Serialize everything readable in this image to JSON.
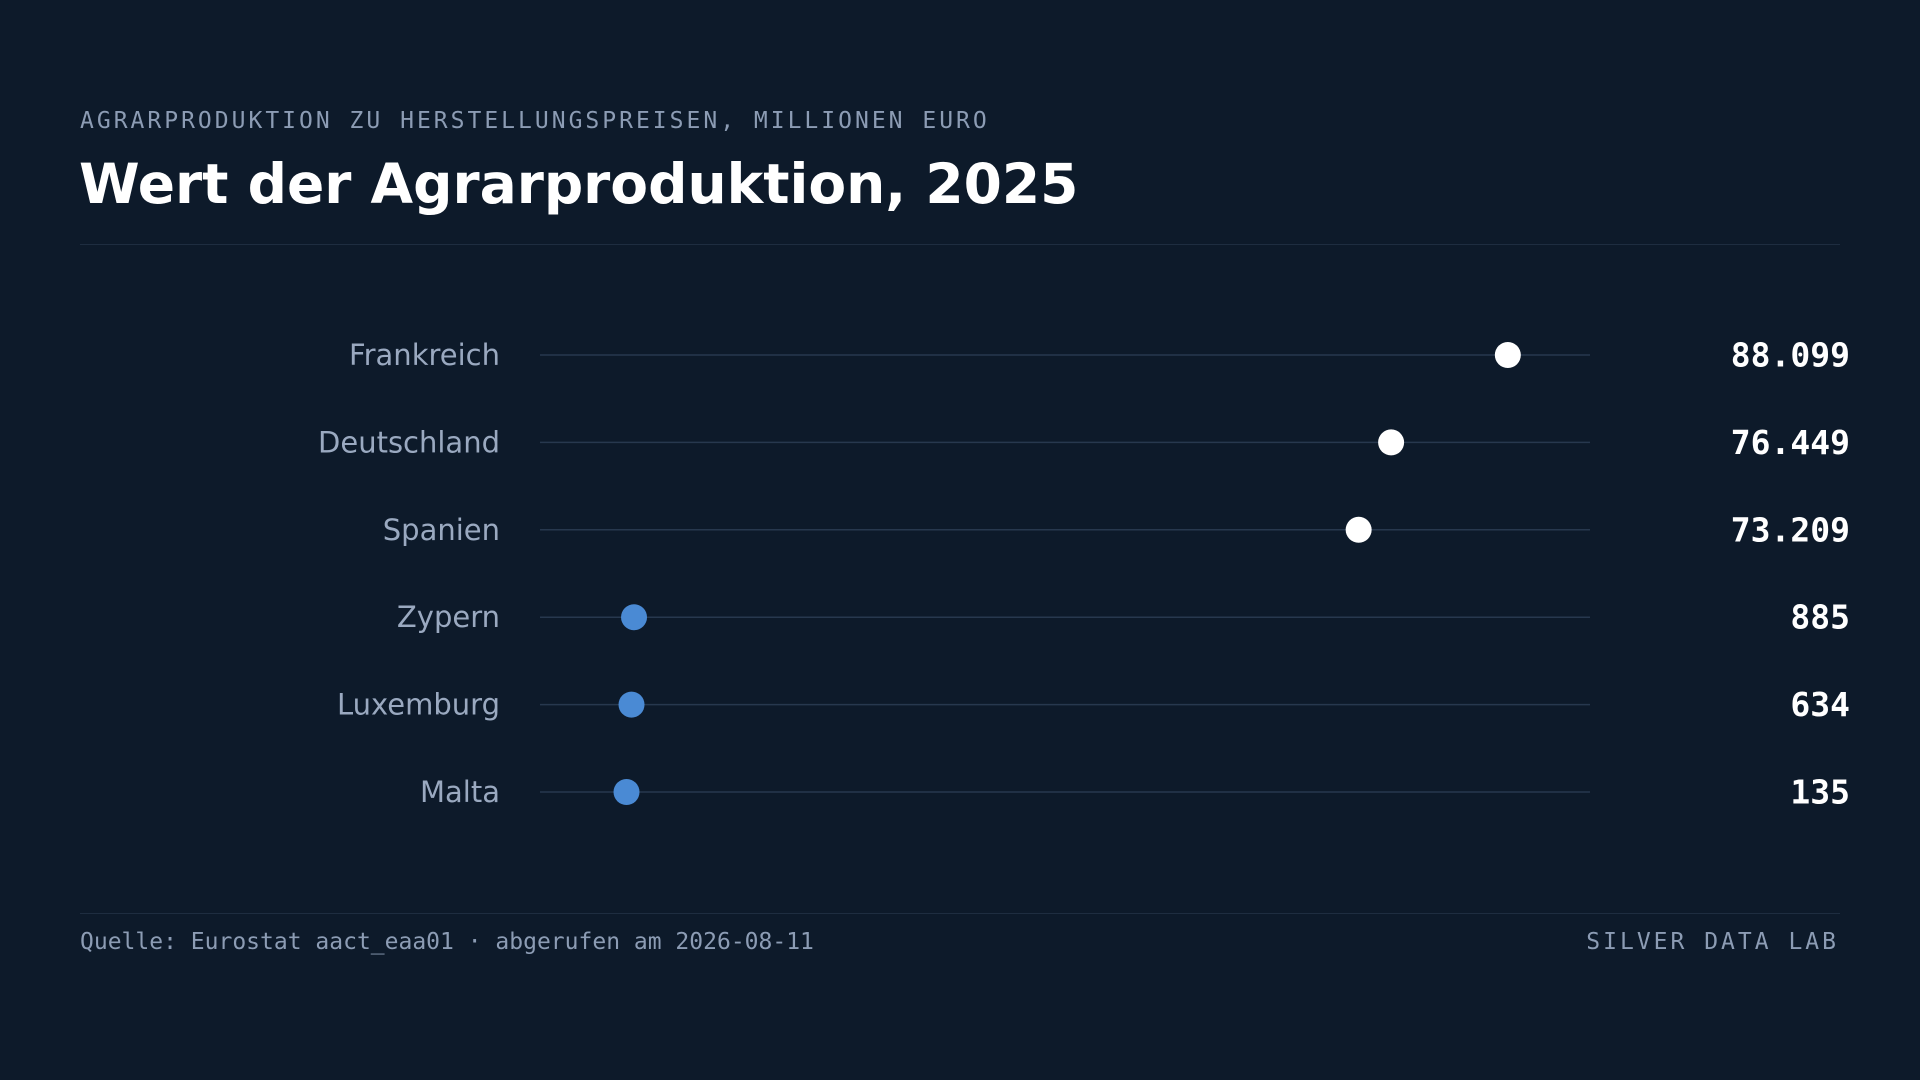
{
  "header": {
    "kicker": "AGRARPRODUKTION ZU HERSTELLUNGSPREISEN, MILLIONEN EURO",
    "title": "Wert der Agrarproduktion, 2025"
  },
  "footer": {
    "source": "Quelle: Eurostat aact_eaa01 · abgerufen am 2026-08-11",
    "brand": "SILVER DATA LAB"
  },
  "colors": {
    "background": "#0d1a2a",
    "top_group_dot": "#ffffff",
    "bottom_group_dot": "#4a8ad4",
    "track_line": "#27384e"
  },
  "chart_data": {
    "type": "dot",
    "unit": "Millionen Euro",
    "categories": [
      "Frankreich",
      "Deutschland",
      "Spanien",
      "Zypern",
      "Luxemburg",
      "Malta"
    ],
    "values": [
      88099,
      76449,
      73209,
      885,
      634,
      135
    ],
    "value_labels": [
      "88.099",
      "76.449",
      "73.209",
      "885",
      "634",
      "135"
    ],
    "groups": [
      "top",
      "top",
      "top",
      "bottom",
      "bottom",
      "bottom"
    ],
    "xlim": [
      -8500,
      96300
    ],
    "grid": false,
    "legend": "none"
  }
}
